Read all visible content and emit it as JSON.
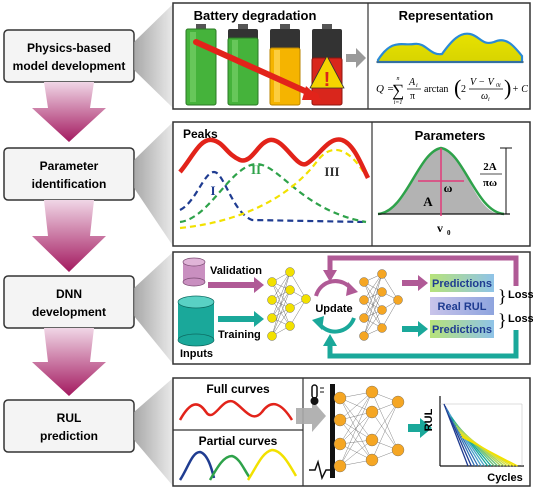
{
  "steps": [
    {
      "line1": "Physics-based",
      "line2": "model development"
    },
    {
      "line1": "Parameter",
      "line2": "identification"
    },
    {
      "line1": "DNN",
      "line2": "development"
    },
    {
      "line1": "RUL",
      "line2": "prediction"
    }
  ],
  "panel1": {
    "left_title": "Battery degradation",
    "right_title": "Representation",
    "equation": {
      "lhs": "Q =",
      "sum_top": "n",
      "sum_bottom": "i=1",
      "num": "A",
      "num_sub": "i",
      "den": "π",
      "func": "arctan",
      "inner_num": "V − V",
      "inner_num_sub": "0i",
      "inner_den": "ω",
      "inner_den_sub": "i",
      "two": "2",
      "tail": "+ C"
    },
    "battery_colors": [
      "#3aa935",
      "#3aa935",
      "#f5b400",
      "#d9261c"
    ],
    "warning": "!"
  },
  "panel2": {
    "left_title": "Peaks",
    "peak_labels": [
      "I",
      "II",
      "III"
    ],
    "right_title": "Parameters",
    "param_A": "A",
    "param_omega": "ω",
    "param_v0": "v",
    "param_v0_sub": "0",
    "param_2A": "2A",
    "param_piomega": "πω"
  },
  "panel3": {
    "validation": "Validation",
    "training": "Training",
    "inputs": "Inputs",
    "update": "Update",
    "predictions_top": "Predictions",
    "real_rul": "Real RUL",
    "predictions_bottom": "Predictions",
    "loss_top": "Loss",
    "loss_bottom": "Loss"
  },
  "panel4": {
    "full_curves": "Full  curves",
    "partial_curves": "Partial curves",
    "y_axis": "RUL",
    "x_axis": "Cycles"
  },
  "colors": {
    "step_arrow": "#b0216e",
    "panel_border": "#333333",
    "red_curve": "#e2231a",
    "green": "#2ea24a",
    "navy": "#1f3c91",
    "yellow": "#f2e100",
    "teal": "#1aa89a",
    "magenta": "#b05a96",
    "node": "#f5a623"
  }
}
